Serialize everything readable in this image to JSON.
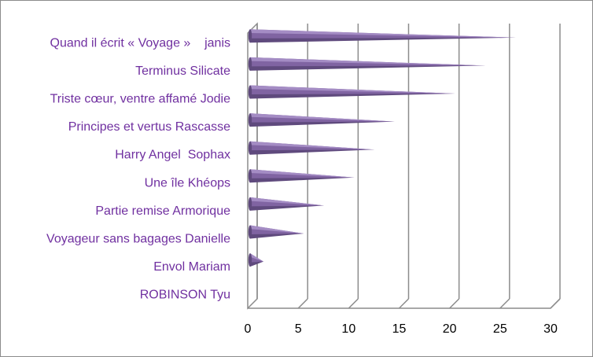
{
  "chart_data": {
    "type": "bar",
    "orientation": "horizontal",
    "style": "3d-cone",
    "categories": [
      "Quand il écrit « Voyage »    janis",
      "Terminus Silicate",
      "Triste cœur, ventre affamé Jodie",
      "Principes et vertus Rascasse",
      "Harry Angel  Sophax",
      "Une île Khéops",
      "Partie remise Armorique",
      "Voyageur sans bagages Danielle",
      "Envol Mariam",
      "ROBINSON Tyu"
    ],
    "values": [
      26,
      23,
      20,
      14,
      12,
      10,
      7,
      5,
      1,
      0
    ],
    "xlim": [
      0,
      30
    ],
    "xticks": [
      0,
      5,
      10,
      15,
      20,
      25,
      30
    ],
    "grid": true,
    "legend": "none",
    "colors": {
      "bar": "#8064a2",
      "bar_dark": "#5f4a7d",
      "bar_light": "#a48cc4",
      "label": "#7030a0",
      "grid": "#8c8c8c"
    }
  }
}
